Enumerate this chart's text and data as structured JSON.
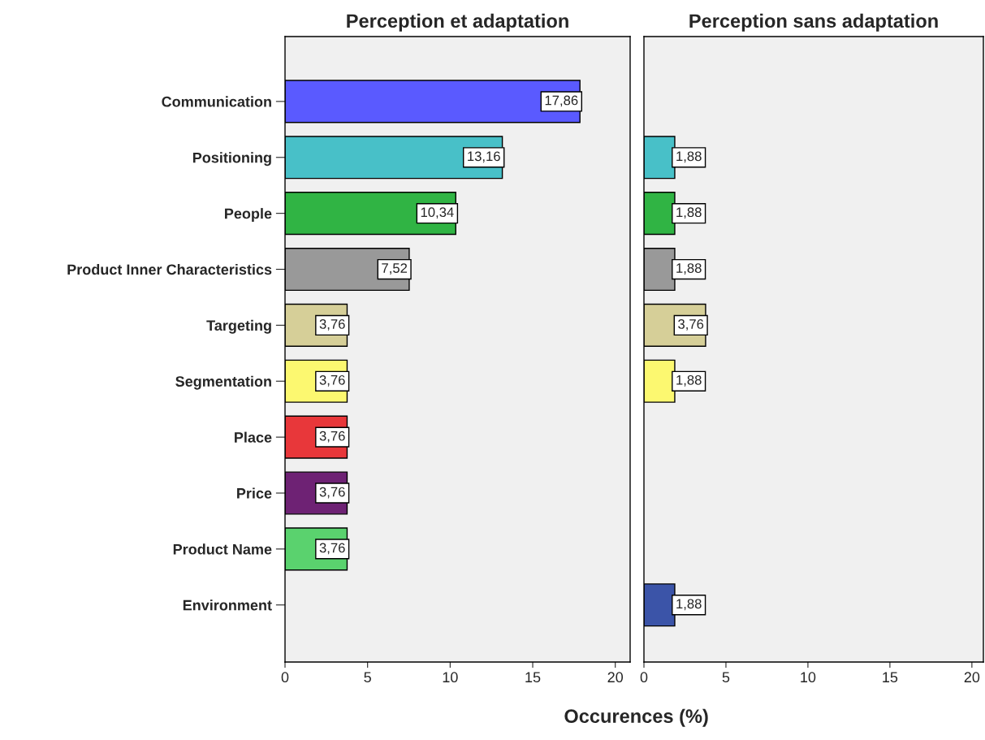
{
  "chart_data": [
    {
      "type": "bar",
      "orientation": "horizontal",
      "title": "Perception et adaptation",
      "xlabel": "Occurences (%)",
      "categories": [
        "Communication",
        "Positioning",
        "People",
        "Product Inner Characteristics",
        "Targeting",
        "Segmentation",
        "Place",
        "Price",
        "Product Name",
        "Environment"
      ],
      "values": [
        17.86,
        13.16,
        10.34,
        7.52,
        3.76,
        3.76,
        3.76,
        3.76,
        3.76,
        null
      ],
      "value_labels": [
        "17,86",
        "13,16",
        "10,34",
        "7,52",
        "3,76",
        "3,76",
        "3,76",
        "3,76",
        "3,76",
        null
      ],
      "colors": [
        "#5a5aff",
        "#48c0c8",
        "#30b444",
        "#999999",
        "#d6cf98",
        "#fcf870",
        "#e8373a",
        "#6e2274",
        "#5ad26e",
        "#3b54a8"
      ],
      "xlim": [
        0,
        20.9
      ],
      "xticks": [
        0,
        5,
        10,
        15,
        20
      ],
      "grid": false
    },
    {
      "type": "bar",
      "orientation": "horizontal",
      "title": "Perception sans adaptation",
      "categories": [
        null,
        null,
        null,
        null,
        null,
        null,
        null,
        null,
        null,
        null
      ],
      "values": [
        null,
        1.88,
        1.88,
        1.88,
        3.76,
        1.88,
        null,
        null,
        null,
        1.88
      ],
      "value_labels": [
        null,
        "1,88",
        "1,88",
        "1,88",
        "3,76",
        "1,88",
        null,
        null,
        null,
        "1,88"
      ],
      "colors": [
        "#5a5aff",
        "#48c0c8",
        "#30b444",
        "#999999",
        "#d6cf98",
        "#fcf870",
        "#e8373a",
        "#6e2274",
        "#5ad26e",
        "#3b54a8"
      ],
      "xlim": [
        0,
        20.7
      ],
      "xticks": [
        0,
        5,
        10,
        15,
        20
      ],
      "grid": false
    }
  ]
}
